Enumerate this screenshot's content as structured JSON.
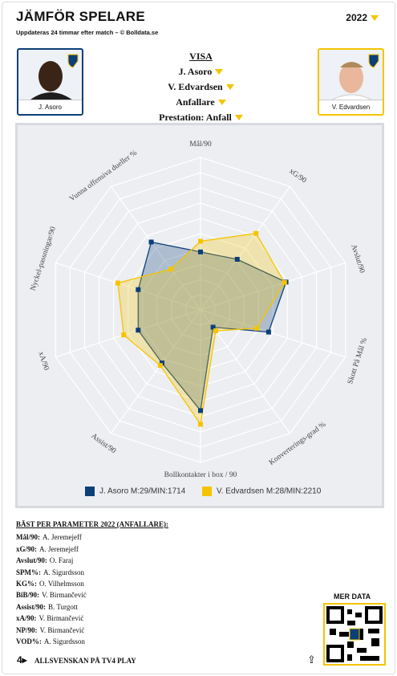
{
  "header": {
    "title": "JÄMFÖR SPELARE",
    "subtitle": "Uppdateras 24 timmar efter match – © Bolldata.se",
    "year": "2022"
  },
  "players": [
    {
      "name": "J. Asoro"
    },
    {
      "name": "V. Edvardsen"
    }
  ],
  "filters": {
    "heading": "VISA",
    "player1": "J. Asoro",
    "player2": "V. Edvardsen",
    "position": "Anfallare",
    "mode": "Prestation: Anfall"
  },
  "chart_data": {
    "type": "radar",
    "categories": [
      "Mål/90",
      "xG/90",
      "Avslut/90",
      "Skott På Mål %",
      "Konverterings-grad %",
      "Bollkontakter i box / 90",
      "Assist/90",
      "xA/90",
      "Nyckel-passningar/90",
      "Vunna offensiva dueller %"
    ],
    "rlim": [
      0,
      100
    ],
    "rticks": [
      10,
      20,
      30,
      40,
      50,
      60,
      70,
      80,
      90,
      100
    ],
    "series": [
      {
        "name": "J. Asoro M:29/MIN:1714",
        "color": "#0b3f78",
        "values": [
          38,
          41,
          59,
          47,
          14,
          66,
          43,
          43,
          43,
          55
        ]
      },
      {
        "name": "V. Edvardsen M:28/MIN:2210",
        "color": "#f5c400",
        "values": [
          45,
          62,
          58,
          39,
          17,
          75,
          45,
          53,
          57,
          33
        ]
      }
    ]
  },
  "best": {
    "heading": "BÄST PER PARAMETER 2022 (ANFALLARE):",
    "rows": [
      [
        "Mål/90",
        "A. Jeremejeff"
      ],
      [
        "xG/90",
        "A. Jeremejeff"
      ],
      [
        "Avslut/90",
        "O. Faraj"
      ],
      [
        "SPM%",
        "A. Sigurdsson"
      ],
      [
        "KG%",
        "O. Vilhelmsson"
      ],
      [
        "BiB/90",
        "V. Birmančević"
      ],
      [
        "Assist/90",
        "B. Turgott"
      ],
      [
        "xA/90",
        "V. Birmančević"
      ],
      [
        "NP/90",
        "V. Birmančević"
      ],
      [
        "VOD%",
        "A. Sigurdsson"
      ]
    ]
  },
  "more": "MER DATA",
  "footer": "ALLSVENSKAN PÅ TV4 PLAY"
}
